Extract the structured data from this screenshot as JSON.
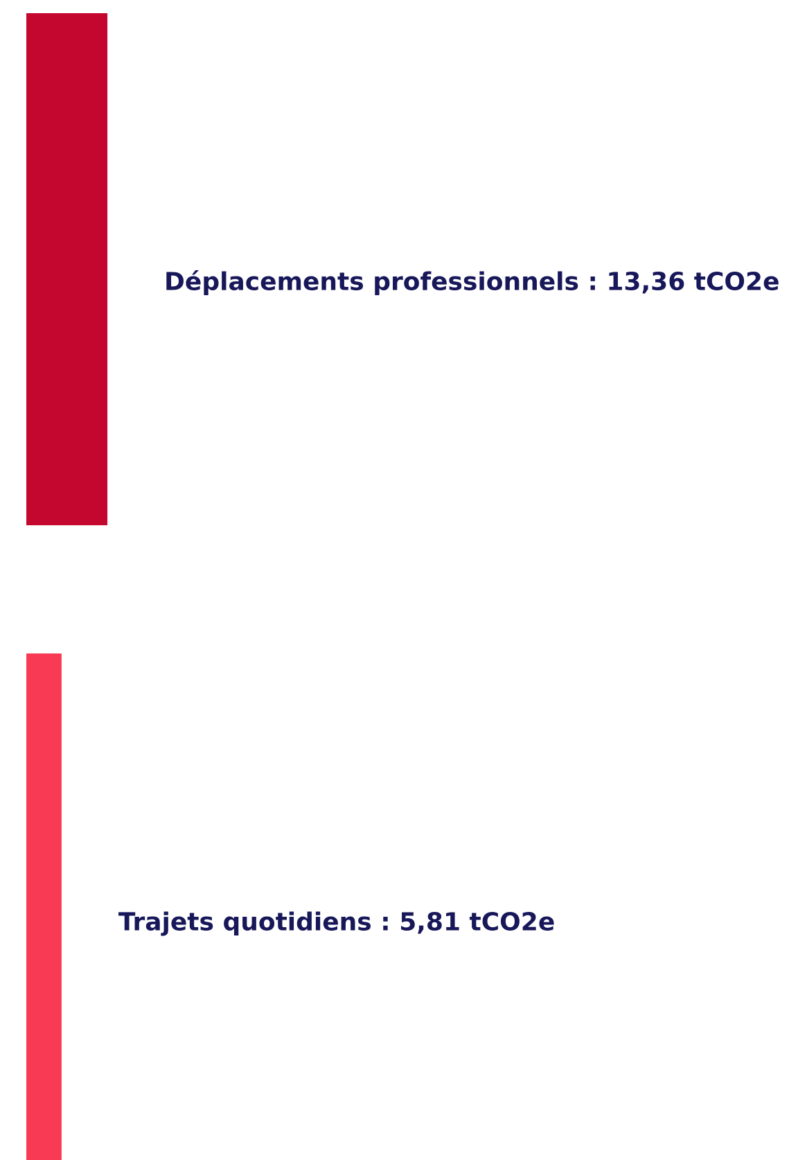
{
  "chart_data": {
    "type": "bar",
    "orientation": "horizontal",
    "values": [
      13.36,
      5.81
    ],
    "value_labels": [
      "Déplacements professionnels : 13,36 tCO2e",
      "Trajets quotidiens : 5,81 tCO2e"
    ],
    "colors": [
      "#c4072f",
      "#f93a55"
    ]
  }
}
